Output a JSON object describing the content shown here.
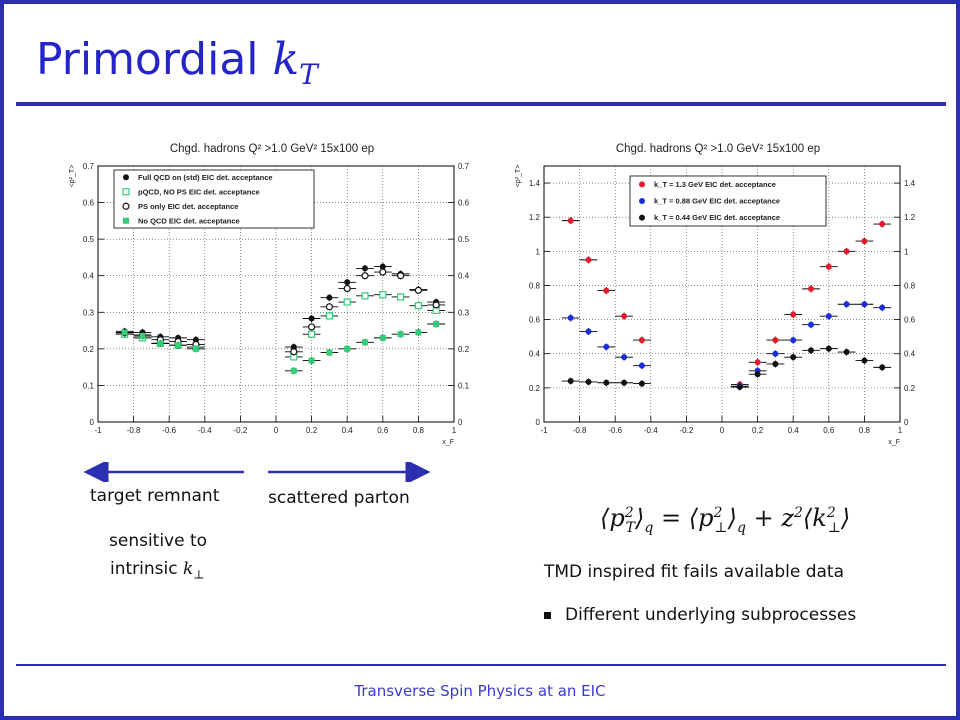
{
  "slide": {
    "title_text": "Primordial ",
    "title_math": "k",
    "title_math_sub": "T",
    "footer": "Transverse Spin Physics at an EIC"
  },
  "annotations": {
    "target_remnant": "target remnant",
    "scattered_parton": "scattered parton",
    "sensitive_line1": "sensitive to",
    "sensitive_line2": "intrinsic",
    "sensitive_math": "k",
    "sensitive_math_sub": "⊥",
    "fit_text": "TMD inspired fit fails available data",
    "bullet_text": "Different underlying subprocesses"
  },
  "formula": {
    "lhs": "p",
    "lhs_sup": "2",
    "lhs_sub": "T",
    "q1": "q",
    "eq": "=",
    "mid": "p",
    "mid_sup": "2",
    "mid_sub": "⊥",
    "q2": "q",
    "plus": "+",
    "z": "z",
    "z_sup": "2",
    "k": "k",
    "k_sup": "2",
    "k_sub": "⊥"
  },
  "colors": {
    "frame": "#2b2fb0",
    "title": "#2424c8",
    "green": "#33cc77",
    "red": "#e8192c",
    "blue": "#1a2ee0",
    "black": "#111111"
  },
  "chart_data": [
    {
      "type": "scatter",
      "title": "Chgd. hadrons Q² >1.0 GeV² 15x100 ep",
      "ylabel": "<p²_T>",
      "xlabel": "x_F",
      "xlim": [
        -1,
        1
      ],
      "ylim": [
        0,
        0.7
      ],
      "xticks": [
        "-1",
        "-0.8",
        "-0.6",
        "-0.4",
        "-0.2",
        "0",
        "0.2",
        "0.4",
        "0.6",
        "0.8",
        "1"
      ],
      "yticks": [
        "0",
        "0.1",
        "0.2",
        "0.3",
        "0.4",
        "0.5",
        "0.6",
        "0.7"
      ],
      "grid": true,
      "legend_position": "top-left",
      "series": [
        {
          "name": "Full QCD on (std) EIC det. acceptance",
          "marker": "filled-circle",
          "color": "#111111",
          "x": [
            -0.85,
            -0.75,
            -0.65,
            -0.55,
            -0.45,
            0.1,
            0.2,
            0.3,
            0.4,
            0.5,
            0.6,
            0.7,
            0.8,
            0.9
          ],
          "y": [
            0.248,
            0.245,
            0.233,
            0.23,
            0.225,
            0.205,
            0.283,
            0.34,
            0.382,
            0.42,
            0.425,
            0.405,
            0.362,
            0.328
          ]
        },
        {
          "name": "pQCD, NO PS EIC det. acceptance",
          "marker": "open-square",
          "color": "#33cc77",
          "x": [
            -0.85,
            -0.75,
            -0.65,
            -0.55,
            -0.45,
            0.1,
            0.2,
            0.3,
            0.4,
            0.5,
            0.6,
            0.7,
            0.8,
            0.9
          ],
          "y": [
            0.24,
            0.23,
            0.215,
            0.21,
            0.205,
            0.178,
            0.24,
            0.29,
            0.328,
            0.345,
            0.348,
            0.342,
            0.318,
            0.305
          ]
        },
        {
          "name": "PS only EIC det. acceptance",
          "marker": "open-circle",
          "color": "#111111",
          "x": [
            -0.85,
            -0.75,
            -0.65,
            -0.55,
            -0.45,
            0.1,
            0.2,
            0.3,
            0.4,
            0.5,
            0.6,
            0.7,
            0.8,
            0.9
          ],
          "y": [
            0.244,
            0.238,
            0.225,
            0.22,
            0.212,
            0.192,
            0.26,
            0.315,
            0.365,
            0.4,
            0.41,
            0.4,
            0.36,
            0.32
          ]
        },
        {
          "name": "No QCD EIC det. acceptance",
          "marker": "filled-square",
          "color": "#33cc77",
          "x": [
            -0.85,
            -0.75,
            -0.65,
            -0.55,
            -0.45,
            0.1,
            0.2,
            0.3,
            0.4,
            0.5,
            0.6,
            0.7,
            0.8,
            0.9
          ],
          "y": [
            0.245,
            0.235,
            0.215,
            0.21,
            0.2,
            0.14,
            0.168,
            0.19,
            0.2,
            0.218,
            0.23,
            0.24,
            0.245,
            0.268
          ]
        }
      ]
    },
    {
      "type": "scatter",
      "title": "Chgd. hadrons Q² >1.0 GeV² 15x100 ep",
      "ylabel": "<p²_T>",
      "xlabel": "x_F",
      "xlim": [
        -1,
        1
      ],
      "ylim": [
        0,
        1.5
      ],
      "xticks": [
        "-1",
        "-0.8",
        "-0.6",
        "-0.4",
        "-0.2",
        "0",
        "0.2",
        "0.4",
        "0.6",
        "0.8",
        "1"
      ],
      "yticks": [
        "0",
        "0.2",
        "0.4",
        "0.6",
        "0.8",
        "1",
        "1.2",
        "1.4"
      ],
      "grid": true,
      "legend_position": "top-right",
      "series": [
        {
          "name": "k_T = 1.3 GeV EIC det. acceptance",
          "marker": "filled-circle",
          "color": "#e8192c",
          "x": [
            -0.85,
            -0.75,
            -0.65,
            -0.55,
            -0.45,
            0.1,
            0.2,
            0.3,
            0.4,
            0.5,
            0.6,
            0.7,
            0.8,
            0.9
          ],
          "y": [
            1.18,
            0.95,
            0.77,
            0.62,
            0.48,
            0.22,
            0.35,
            0.48,
            0.63,
            0.78,
            0.91,
            1.0,
            1.06,
            1.16
          ]
        },
        {
          "name": "k_T = 0.88 GeV EIC det. acceptance",
          "marker": "filled-circle",
          "color": "#1a2ee0",
          "x": [
            -0.85,
            -0.75,
            -0.65,
            -0.55,
            -0.45,
            0.1,
            0.2,
            0.3,
            0.4,
            0.5,
            0.6,
            0.7,
            0.8,
            0.9
          ],
          "y": [
            0.61,
            0.53,
            0.44,
            0.38,
            0.33,
            0.21,
            0.3,
            0.4,
            0.48,
            0.57,
            0.62,
            0.69,
            0.69,
            0.67
          ]
        },
        {
          "name": "k_T = 0.44 GeV EIC det. acceptance",
          "marker": "filled-circle",
          "color": "#111111",
          "x": [
            -0.85,
            -0.75,
            -0.65,
            -0.55,
            -0.45,
            0.1,
            0.2,
            0.3,
            0.4,
            0.5,
            0.6,
            0.7,
            0.8,
            0.9
          ],
          "y": [
            0.24,
            0.235,
            0.23,
            0.23,
            0.225,
            0.205,
            0.28,
            0.34,
            0.38,
            0.42,
            0.43,
            0.41,
            0.36,
            0.32
          ]
        }
      ]
    }
  ]
}
